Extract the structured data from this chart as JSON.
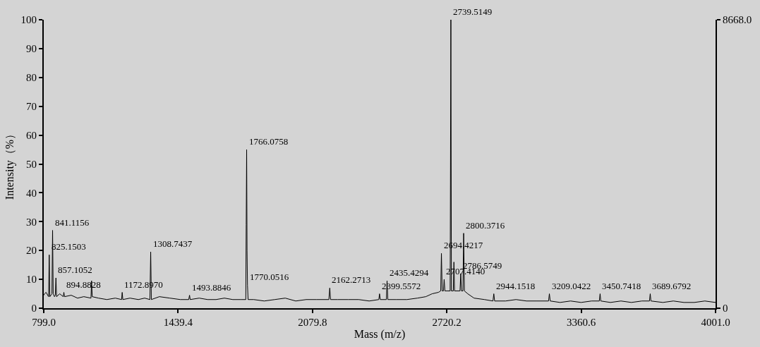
{
  "chart_data": {
    "type": "line",
    "xlabel": "Mass (m/z)",
    "ylabel": "Intensity（%）",
    "xlim": [
      799.0,
      4001.0
    ],
    "xticks": [
      {
        "value": 799.0,
        "label": "799.0"
      },
      1439.4,
      2079.8,
      2720.2,
      3360.6,
      {
        "value": 4001.0,
        "label": "4001.0"
      }
    ],
    "ylim": [
      0,
      100
    ],
    "yticks": [
      0,
      10,
      20,
      30,
      40,
      50,
      60,
      70,
      80,
      90,
      100
    ],
    "y2lim": [
      0,
      8668.0
    ],
    "y2ticks": [
      0,
      {
        "value": 8668.0,
        "label": "8668.0"
      }
    ],
    "grid": false,
    "marker": "none",
    "line_style": "solid",
    "x": [
      799,
      803,
      810,
      822,
      825.1503,
      828,
      838,
      841.1156,
      844,
      850,
      854,
      857.1052,
      860,
      875,
      892,
      894.8828,
      898,
      930,
      960,
      990,
      1024,
      1027,
      1030,
      1060,
      1100,
      1140,
      1170,
      1172.897,
      1176,
      1210,
      1250,
      1280,
      1305,
      1308.7437,
      1312,
      1350,
      1400,
      1450,
      1490,
      1493.8846,
      1497,
      1540,
      1580,
      1620,
      1660,
      1700,
      1740,
      1762,
      1764,
      1766.0758,
      1768,
      1770.0516,
      1773,
      1800,
      1850,
      1900,
      1950,
      2000,
      2050,
      2100,
      2158,
      2162.2713,
      2166,
      2200,
      2250,
      2300,
      2350,
      2396,
      2399.5572,
      2403,
      2432,
      2435.4294,
      2439,
      2480,
      2530,
      2580,
      2620,
      2650,
      2680,
      2691,
      2694.4217,
      2698,
      2704,
      2707.414,
      2711,
      2720,
      2736,
      2739.5149,
      2742,
      2751,
      2754,
      2757,
      2770,
      2783,
      2786.5749,
      2790,
      2797,
      2800.3716,
      2804,
      2820,
      2850,
      2900,
      2940,
      2944.1518,
      2948,
      3000,
      3050,
      3100,
      3150,
      3205,
      3209.0422,
      3213,
      3260,
      3310,
      3360,
      3410,
      3447,
      3450.7418,
      3454,
      3500,
      3550,
      3600,
      3650,
      3686,
      3689.6792,
      3693,
      3750,
      3800,
      3850,
      3900,
      3950,
      4001
    ],
    "series": [
      {
        "color": "#000000",
        "values": [
          4.5,
          5,
          5.5,
          4,
          18.5,
          4,
          5,
          27,
          5,
          4,
          4.5,
          10.5,
          4,
          5,
          4,
          5.5,
          4,
          4.5,
          3.5,
          4,
          3.5,
          9.5,
          4,
          3.5,
          3,
          3.5,
          3,
          5.5,
          3,
          3.5,
          3,
          3.5,
          3,
          19.5,
          3,
          4,
          3.5,
          3,
          3,
          4.5,
          3,
          3.5,
          3,
          3,
          3.5,
          3,
          3,
          3,
          29,
          55,
          20,
          8,
          3,
          3,
          2.5,
          3,
          3.5,
          2.5,
          3,
          3,
          3,
          7,
          3,
          3,
          3,
          3,
          2.5,
          3,
          5,
          3,
          3,
          9.5,
          3,
          3,
          3,
          3.5,
          4,
          5,
          5.5,
          6,
          19,
          6,
          6,
          10,
          6,
          6,
          6,
          100,
          6,
          6,
          16,
          6,
          6,
          6,
          12,
          6,
          6,
          26,
          6,
          5,
          3.5,
          3,
          2.5,
          5,
          2.5,
          2.5,
          3,
          2.5,
          2.5,
          2.5,
          5,
          2.5,
          2,
          2.5,
          2,
          2.5,
          2.5,
          5,
          2.5,
          2,
          2.5,
          2,
          2.5,
          2.5,
          5,
          2.5,
          2,
          2.5,
          2,
          2,
          2.5,
          2
        ]
      }
    ],
    "annotations": [
      {
        "text": "825.1503",
        "x": 825.1503,
        "y": 18.5
      },
      {
        "text": "841.1156",
        "x": 841.1156,
        "y": 27
      },
      {
        "text": "857.1052",
        "x": 857.1052,
        "y": 10.5
      },
      {
        "text": "894.8828",
        "x": 894.8828,
        "y": 5.5
      },
      {
        "text": "1172.8970",
        "x": 1172.897,
        "y": 5.5
      },
      {
        "text": "1308.7437",
        "x": 1308.7437,
        "y": 19.5
      },
      {
        "text": "1493.8846",
        "x": 1493.8846,
        "y": 4.5
      },
      {
        "text": "1766.0758",
        "x": 1766.0758,
        "y": 55
      },
      {
        "text": "1770.0516",
        "x": 1770.0516,
        "y": 8
      },
      {
        "text": "2162.2713",
        "x": 2162.2713,
        "y": 7
      },
      {
        "text": "2399.5572",
        "x": 2399.5572,
        "y": 5
      },
      {
        "text": "2435.4294",
        "x": 2435.4294,
        "y": 9.5
      },
      {
        "text": "2694.4217",
        "x": 2694.4217,
        "y": 19
      },
      {
        "text": "2707.4140",
        "x": 2707.414,
        "y": 10
      },
      {
        "text": "2739.5149",
        "x": 2739.5149,
        "y": 100
      },
      {
        "text": "2786.5749",
        "x": 2786.5749,
        "y": 12
      },
      {
        "text": "2800.3716",
        "x": 2800.3716,
        "y": 26
      },
      {
        "text": "2944.1518",
        "x": 2944.1518,
        "y": 5
      },
      {
        "text": "3209.0422",
        "x": 3209.0422,
        "y": 5
      },
      {
        "text": "3450.7418",
        "x": 3450.7418,
        "y": 5
      },
      {
        "text": "3689.6792",
        "x": 3689.6792,
        "y": 5
      }
    ]
  }
}
